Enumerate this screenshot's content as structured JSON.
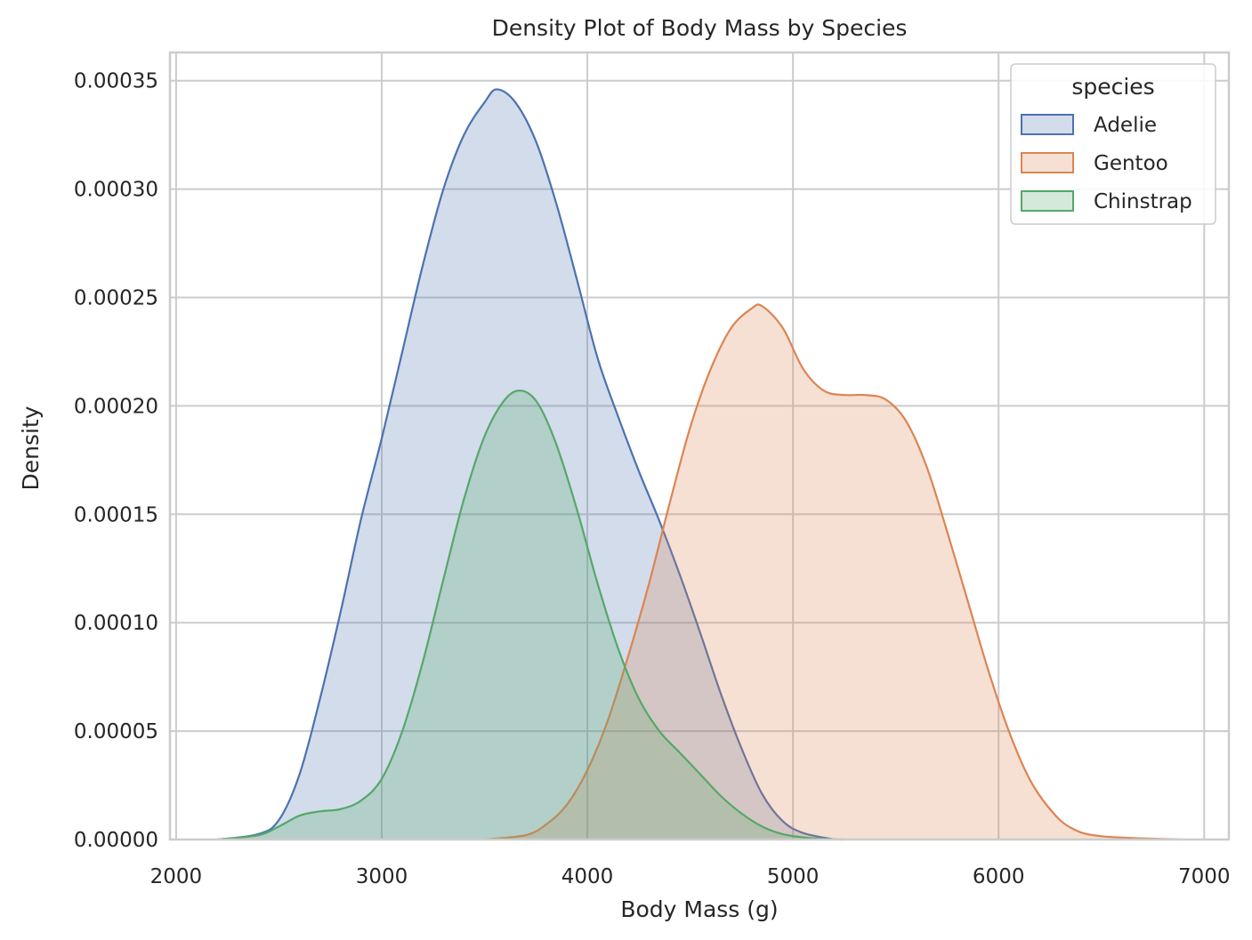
{
  "chart_data": {
    "type": "area",
    "title": "Density Plot of Body Mass by Species",
    "xlabel": "Body Mass (g)",
    "ylabel": "Density",
    "xlim": [
      1970,
      7120
    ],
    "ylim": [
      0,
      0.000363
    ],
    "xticks": [
      2000,
      3000,
      4000,
      5000,
      6000,
      7000
    ],
    "xtick_labels": [
      "2000",
      "3000",
      "4000",
      "5000",
      "6000",
      "7000"
    ],
    "yticks": [
      0,
      5e-05,
      0.0001,
      0.00015,
      0.0002,
      0.00025,
      0.0003,
      0.00035
    ],
    "ytick_labels": [
      "0.00000",
      "0.00005",
      "0.00010",
      "0.00015",
      "0.00020",
      "0.00025",
      "0.00030",
      "0.00035"
    ],
    "grid": true,
    "legend": {
      "title": "species",
      "placement": "top-right"
    },
    "series": [
      {
        "name": "Adelie",
        "color": "#4c72b0",
        "points": [
          [
            2200,
            0.0
          ],
          [
            2400,
            2.5e-06
          ],
          [
            2500,
            9e-06
          ],
          [
            2600,
            3e-05
          ],
          [
            2700,
            6.5e-05
          ],
          [
            2800,
            0.000105
          ],
          [
            2900,
            0.000148
          ],
          [
            3000,
            0.000185
          ],
          [
            3100,
            0.000225
          ],
          [
            3200,
            0.000265
          ],
          [
            3300,
            0.0003
          ],
          [
            3400,
            0.000325
          ],
          [
            3500,
            0.00034
          ],
          [
            3560,
            0.000346
          ],
          [
            3650,
            0.00034
          ],
          [
            3750,
            0.000322
          ],
          [
            3850,
            0.000293
          ],
          [
            3950,
            0.000258
          ],
          [
            4050,
            0.000222
          ],
          [
            4150,
            0.000195
          ],
          [
            4250,
            0.00017
          ],
          [
            4350,
            0.000147
          ],
          [
            4450,
            0.000122
          ],
          [
            4550,
            9.5e-05
          ],
          [
            4650,
            6.7e-05
          ],
          [
            4750,
            4.2e-05
          ],
          [
            4850,
            2.1e-05
          ],
          [
            4950,
            8.5e-06
          ],
          [
            5050,
            3e-06
          ],
          [
            5200,
            0.0
          ]
        ]
      },
      {
        "name": "Gentoo",
        "color": "#dd8452",
        "points": [
          [
            3500,
            0.0
          ],
          [
            3700,
            2e-06
          ],
          [
            3800,
            7e-06
          ],
          [
            3900,
            1.6e-05
          ],
          [
            4000,
            3.2e-05
          ],
          [
            4100,
            5.5e-05
          ],
          [
            4200,
            8.5e-05
          ],
          [
            4300,
            0.000118
          ],
          [
            4400,
            0.000155
          ],
          [
            4500,
            0.00019
          ],
          [
            4600,
            0.000217
          ],
          [
            4700,
            0.000236
          ],
          [
            4800,
            0.000245
          ],
          [
            4850,
            0.000246
          ],
          [
            4950,
            0.000236
          ],
          [
            5050,
            0.000217
          ],
          [
            5150,
            0.000207
          ],
          [
            5250,
            0.000205
          ],
          [
            5350,
            0.000205
          ],
          [
            5450,
            0.000203
          ],
          [
            5550,
            0.000193
          ],
          [
            5650,
            0.000172
          ],
          [
            5750,
            0.000142
          ],
          [
            5850,
            0.00011
          ],
          [
            5950,
            7.8e-05
          ],
          [
            6050,
            5e-05
          ],
          [
            6150,
            2.8e-05
          ],
          [
            6250,
            1.4e-05
          ],
          [
            6350,
            5.5e-06
          ],
          [
            6500,
            1.5e-06
          ],
          [
            6900,
            0.0
          ]
        ]
      },
      {
        "name": "Chinstrap",
        "color": "#55a868",
        "points": [
          [
            2200,
            0.0
          ],
          [
            2400,
            2e-06
          ],
          [
            2500,
            6e-06
          ],
          [
            2600,
            1.1e-05
          ],
          [
            2700,
            1.3e-05
          ],
          [
            2800,
            1.4e-05
          ],
          [
            2900,
            1.8e-05
          ],
          [
            3000,
            2.8e-05
          ],
          [
            3100,
            5e-05
          ],
          [
            3200,
            8.2e-05
          ],
          [
            3300,
            0.00012
          ],
          [
            3400,
            0.000157
          ],
          [
            3500,
            0.000186
          ],
          [
            3600,
            0.000203
          ],
          [
            3680,
            0.000207
          ],
          [
            3760,
            0.000201
          ],
          [
            3850,
            0.000182
          ],
          [
            3950,
            0.000152
          ],
          [
            4050,
            0.000118
          ],
          [
            4150,
            8.8e-05
          ],
          [
            4250,
            6.5e-05
          ],
          [
            4350,
            5e-05
          ],
          [
            4450,
            4e-05
          ],
          [
            4550,
            3e-05
          ],
          [
            4650,
            2e-05
          ],
          [
            4750,
            1.2e-05
          ],
          [
            4850,
            6e-06
          ],
          [
            4950,
            2.5e-06
          ],
          [
            5100,
            5e-07
          ],
          [
            5250,
            0.0
          ]
        ]
      }
    ]
  }
}
